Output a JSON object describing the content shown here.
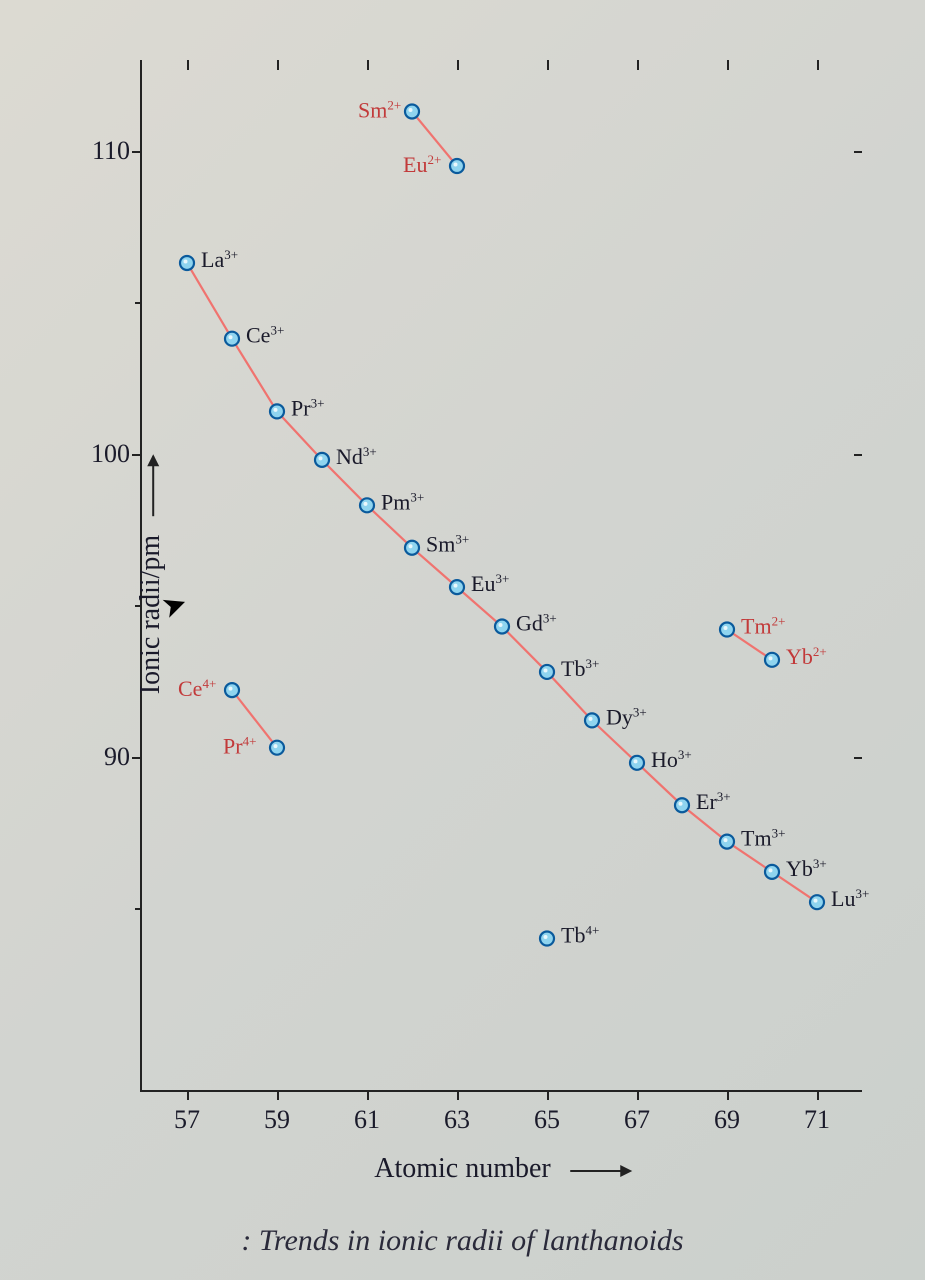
{
  "chart": {
    "type": "scatter-line",
    "title_caption": ": Trends in ionic radii of lanthanoids",
    "xlabel": "Atomic number",
    "ylabel": "Ionic radii/pm",
    "xlim": [
      56,
      72
    ],
    "ylim": [
      79,
      113
    ],
    "xticks": [
      57,
      59,
      61,
      63,
      65,
      67,
      69,
      71
    ],
    "yticks": [
      90,
      100,
      110
    ],
    "yticks_minor": [
      85,
      95,
      105
    ],
    "background_color": "#d5d6d0",
    "axis_color": "#222222",
    "marker": {
      "radius": 7,
      "fill": "#8fd4ef",
      "stroke": "#0a5a9c",
      "stroke_width": 2.2
    },
    "line_color": "#f0736f",
    "line_width": 2.2,
    "label_color_3plus": "#1a1a2a",
    "label_color_other": "#c23a3a",
    "series": [
      {
        "name": "M3+",
        "connected": true,
        "label_color": "#1a1a2a",
        "points": [
          {
            "z": 57,
            "r": 106.3,
            "label": "La",
            "charge": "3+",
            "dx": 14,
            "dy": 4
          },
          {
            "z": 58,
            "r": 103.8,
            "label": "Ce",
            "charge": "3+",
            "dx": 14,
            "dy": 4
          },
          {
            "z": 59,
            "r": 101.4,
            "label": "Pr",
            "charge": "3+",
            "dx": 14,
            "dy": 4
          },
          {
            "z": 60,
            "r": 99.8,
            "label": "Nd",
            "charge": "3+",
            "dx": 14,
            "dy": 4
          },
          {
            "z": 61,
            "r": 98.3,
            "label": "Pm",
            "charge": "3+",
            "dx": 14,
            "dy": 4
          },
          {
            "z": 62,
            "r": 96.9,
            "label": "Sm",
            "charge": "3+",
            "dx": 14,
            "dy": 4
          },
          {
            "z": 63,
            "r": 95.6,
            "label": "Eu",
            "charge": "3+",
            "dx": 14,
            "dy": 4
          },
          {
            "z": 64,
            "r": 94.3,
            "label": "Gd",
            "charge": "3+",
            "dx": 14,
            "dy": 4
          },
          {
            "z": 65,
            "r": 92.8,
            "label": "Tb",
            "charge": "3+",
            "dx": 14,
            "dy": 4
          },
          {
            "z": 66,
            "r": 91.2,
            "label": "Dy",
            "charge": "3+",
            "dx": 14,
            "dy": 4
          },
          {
            "z": 67,
            "r": 89.8,
            "label": "Ho",
            "charge": "3+",
            "dx": 14,
            "dy": 4
          },
          {
            "z": 68,
            "r": 88.4,
            "label": "Er",
            "charge": "3+",
            "dx": 14,
            "dy": 4
          },
          {
            "z": 69,
            "r": 87.2,
            "label": "Tm",
            "charge": "3+",
            "dx": 14,
            "dy": 4
          },
          {
            "z": 70,
            "r": 86.2,
            "label": "Yb",
            "charge": "3+",
            "dx": 14,
            "dy": 4
          },
          {
            "z": 71,
            "r": 85.2,
            "label": "Lu",
            "charge": "3+",
            "dx": 14,
            "dy": 4
          }
        ]
      },
      {
        "name": "M2+_SmEu",
        "connected": true,
        "label_color": "#c23a3a",
        "points": [
          {
            "z": 62,
            "r": 111.3,
            "label": "Sm",
            "charge": "2+",
            "dx": -54,
            "dy": 6
          },
          {
            "z": 63,
            "r": 109.5,
            "label": "Eu",
            "charge": "2+",
            "dx": -54,
            "dy": 6
          }
        ]
      },
      {
        "name": "M2+_TmYb",
        "connected": true,
        "label_color": "#c23a3a",
        "points": [
          {
            "z": 69,
            "r": 94.2,
            "label": "Tm",
            "charge": "2+",
            "dx": 14,
            "dy": 4
          },
          {
            "z": 70,
            "r": 93.2,
            "label": "Yb",
            "charge": "2+",
            "dx": 14,
            "dy": 4
          }
        ]
      },
      {
        "name": "M4+_CePr",
        "connected": true,
        "label_color": "#c23a3a",
        "points": [
          {
            "z": 58,
            "r": 92.2,
            "label": "Ce",
            "charge": "4+",
            "dx": -54,
            "dy": 6
          },
          {
            "z": 59,
            "r": 90.3,
            "label": "Pr",
            "charge": "4+",
            "dx": -54,
            "dy": 6
          }
        ]
      },
      {
        "name": "M4+_Tb",
        "connected": false,
        "label_color": "#1a1a2a",
        "points": [
          {
            "z": 65,
            "r": 84.0,
            "label": "Tb",
            "charge": "4+",
            "dx": 14,
            "dy": 4
          }
        ]
      }
    ]
  }
}
